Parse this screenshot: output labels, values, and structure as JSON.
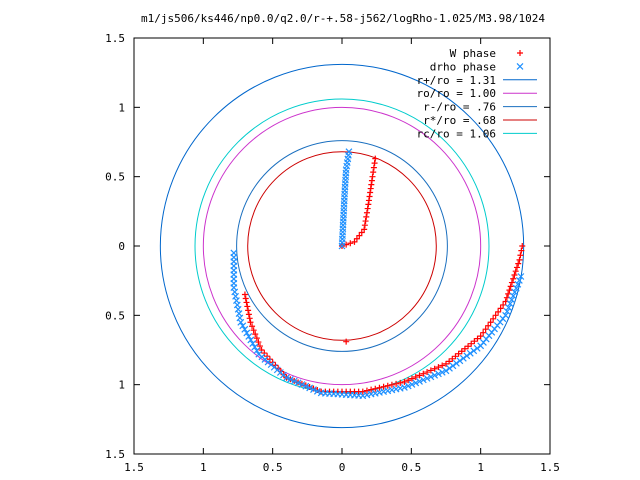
{
  "chart_data": {
    "type": "scatter",
    "title": "m1/js506/ks446/np0.0/q2.0/r-+.58-j562/logRho-1.025/M3.98/1024",
    "xlabel": "",
    "ylabel": "",
    "xlim": [
      -1.5,
      1.5
    ],
    "ylim": [
      -1.5,
      1.5
    ],
    "x_ticks": [
      -1.5,
      -1,
      -0.5,
      0,
      0.5,
      1,
      1.5
    ],
    "y_ticks": [
      -1.5,
      -1,
      -0.5,
      0,
      0.5,
      1,
      1.5
    ],
    "x_tick_labels": [
      "1.5",
      "1",
      "0.5",
      "0",
      "0.5",
      "1",
      "1.5"
    ],
    "y_tick_labels": [
      "1.5",
      "1",
      "0.5",
      "0",
      "0.5",
      "1",
      "1.5"
    ],
    "grid": false,
    "legend_position": "top-right",
    "circles": [
      {
        "name": "r+/ro = 1.31",
        "radius": 1.31,
        "color": "#0066cc"
      },
      {
        "name": "ro/ro = 1.00",
        "radius": 1.0,
        "color": "#cc33cc"
      },
      {
        "name": "r-/ro = .76",
        "radius": 0.76,
        "color": "#1a6fbf"
      },
      {
        "name": "r*/ro = .68",
        "radius": 0.68,
        "color": "#cc0000"
      },
      {
        "name": "rc/ro = 1.06",
        "radius": 1.06,
        "color": "#00cccc"
      }
    ],
    "series": [
      {
        "name": "W phase",
        "marker": "plus",
        "color": "#ff0000",
        "paths": [
          {
            "start": [
              0.0,
              0.0
            ],
            "end": [
              0.22,
              0.64
            ],
            "spacing": 0.03,
            "points": [
              [
                0.0,
                0.0
              ],
              [
                0.09,
                0.03
              ],
              [
                0.16,
                0.12
              ],
              [
                0.19,
                0.3
              ],
              [
                0.22,
                0.5
              ],
              [
                0.24,
                0.63
              ]
            ]
          },
          {
            "start": [
              -0.7,
              -0.35
            ],
            "end": [
              1.3,
              0.0
            ],
            "spacing": 0.03,
            "points": [
              [
                -0.7,
                -0.35
              ],
              [
                -0.66,
                -0.55
              ],
              [
                -0.58,
                -0.75
              ],
              [
                -0.4,
                -0.95
              ],
              [
                -0.15,
                -1.05
              ],
              [
                0.15,
                -1.05
              ],
              [
                0.45,
                -0.98
              ],
              [
                0.75,
                -0.85
              ],
              [
                1.0,
                -0.65
              ],
              [
                1.18,
                -0.4
              ],
              [
                1.28,
                -0.1
              ],
              [
                1.3,
                0.0
              ]
            ]
          }
        ],
        "isolated": [
          [
            0.03,
            -0.69
          ]
        ]
      },
      {
        "name": "drho phase",
        "marker": "x",
        "color": "#1e90ff",
        "paths": [
          {
            "start": [
              0.0,
              0.0
            ],
            "end": [
              0.05,
              0.68
            ],
            "spacing": 0.025,
            "points": [
              [
                0.0,
                0.0
              ],
              [
                0.01,
                0.2
              ],
              [
                0.02,
                0.4
              ],
              [
                0.03,
                0.55
              ],
              [
                0.05,
                0.68
              ]
            ]
          },
          {
            "start": [
              -0.78,
              -0.05
            ],
            "end": [
              1.29,
              -0.22
            ],
            "spacing": 0.03,
            "points": [
              [
                -0.78,
                -0.05
              ],
              [
                -0.78,
                -0.3
              ],
              [
                -0.73,
                -0.55
              ],
              [
                -0.6,
                -0.78
              ],
              [
                -0.4,
                -0.95
              ],
              [
                -0.15,
                -1.06
              ],
              [
                0.15,
                -1.08
              ],
              [
                0.45,
                -1.02
              ],
              [
                0.75,
                -0.9
              ],
              [
                1.0,
                -0.72
              ],
              [
                1.18,
                -0.5
              ],
              [
                1.29,
                -0.22
              ]
            ]
          }
        ]
      }
    ]
  }
}
